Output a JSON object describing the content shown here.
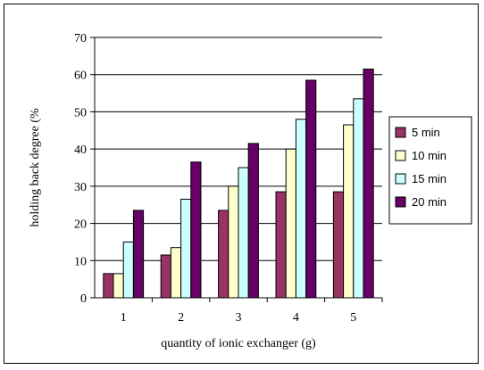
{
  "chart_data": {
    "type": "bar",
    "title": "",
    "xlabel": "quantity of ionic exchanger (g)",
    "ylabel": "holding back degree (%",
    "categories": [
      "1",
      "2",
      "3",
      "4",
      "5"
    ],
    "ylim": [
      0,
      70
    ],
    "yticks": [
      0,
      10,
      20,
      30,
      40,
      50,
      60,
      70
    ],
    "grid": true,
    "legend_position": "right",
    "series": [
      {
        "name": "5 min",
        "color": "#993366",
        "values": [
          6.5,
          11.5,
          23.5,
          28.5,
          28.5
        ]
      },
      {
        "name": "10 min",
        "color": "#FFFFCC",
        "values": [
          6.5,
          13.5,
          30,
          40,
          46.5
        ]
      },
      {
        "name": "15 min",
        "color": "#CCFFFF",
        "values": [
          15,
          26.5,
          35,
          48,
          53.5
        ]
      },
      {
        "name": "20 min",
        "color": "#660066",
        "values": [
          23.5,
          36.5,
          41.5,
          58.5,
          61.5
        ]
      }
    ]
  }
}
